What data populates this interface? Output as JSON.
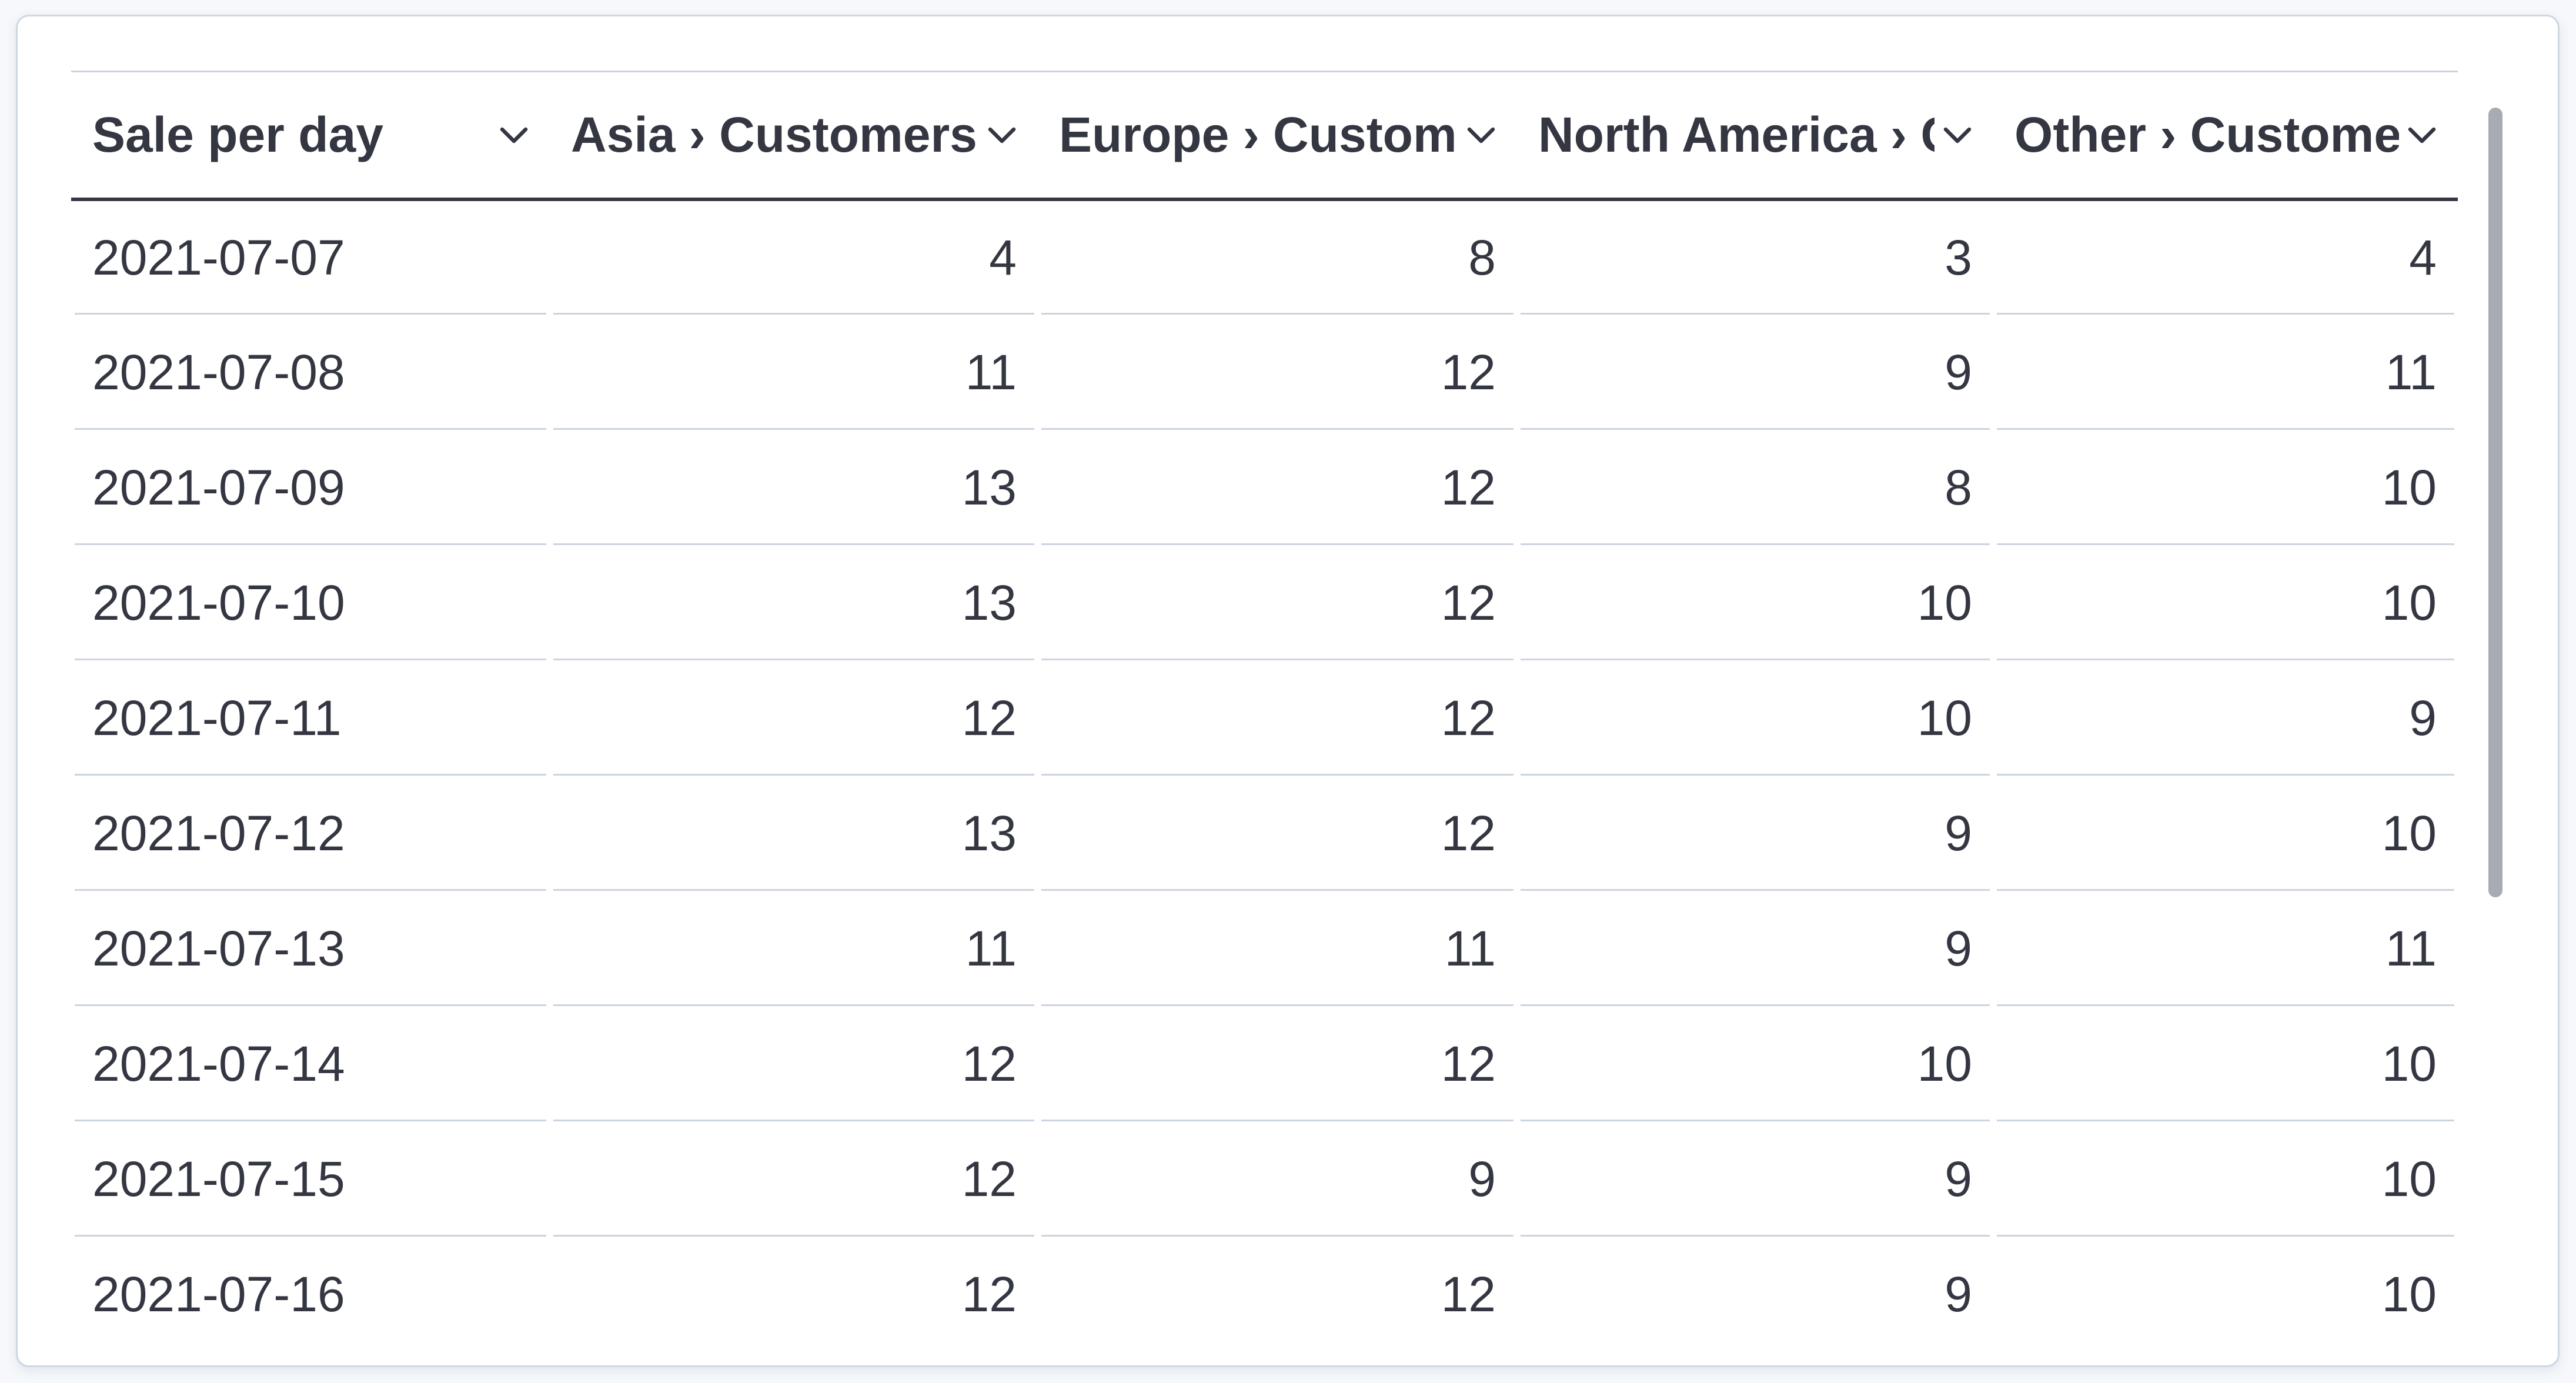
{
  "panel": {
    "kind": "datatable-visualization"
  },
  "table": {
    "columns": [
      {
        "id": "sale-per-day",
        "label": "Sale per day",
        "align": "left",
        "sort_icon": "chevron-down"
      },
      {
        "id": "asia",
        "label": "Asia › Customers",
        "align": "right",
        "sort_icon": "chevron-down"
      },
      {
        "id": "europe",
        "label": "Europe › Customers",
        "align": "right",
        "sort_icon": "chevron-down"
      },
      {
        "id": "north-america",
        "label": "North America › Customers",
        "align": "right",
        "sort_icon": "chevron-down"
      },
      {
        "id": "other",
        "label": "Other › Customers",
        "align": "right",
        "sort_icon": "chevron-down"
      }
    ],
    "rows": [
      [
        "2021-07-07",
        "4",
        "8",
        "3",
        "4"
      ],
      [
        "2021-07-08",
        "11",
        "12",
        "9",
        "11"
      ],
      [
        "2021-07-09",
        "13",
        "12",
        "8",
        "10"
      ],
      [
        "2021-07-10",
        "13",
        "12",
        "10",
        "10"
      ],
      [
        "2021-07-11",
        "12",
        "12",
        "10",
        "9"
      ],
      [
        "2021-07-12",
        "13",
        "12",
        "9",
        "10"
      ],
      [
        "2021-07-13",
        "11",
        "11",
        "9",
        "11"
      ],
      [
        "2021-07-14",
        "12",
        "12",
        "10",
        "10"
      ],
      [
        "2021-07-15",
        "12",
        "9",
        "9",
        "10"
      ],
      [
        "2021-07-16",
        "12",
        "12",
        "9",
        "10"
      ]
    ]
  },
  "scrollbar": {
    "orientation": "vertical"
  },
  "colors": {
    "text": "#343741",
    "header_underline": "#343741",
    "row_separator": "#ccd4e0",
    "panel_border": "#cfd7e2",
    "panel_background": "#ffffff",
    "page_background": "#f6f8fb",
    "scrollbar_thumb": "#a7abb3"
  }
}
